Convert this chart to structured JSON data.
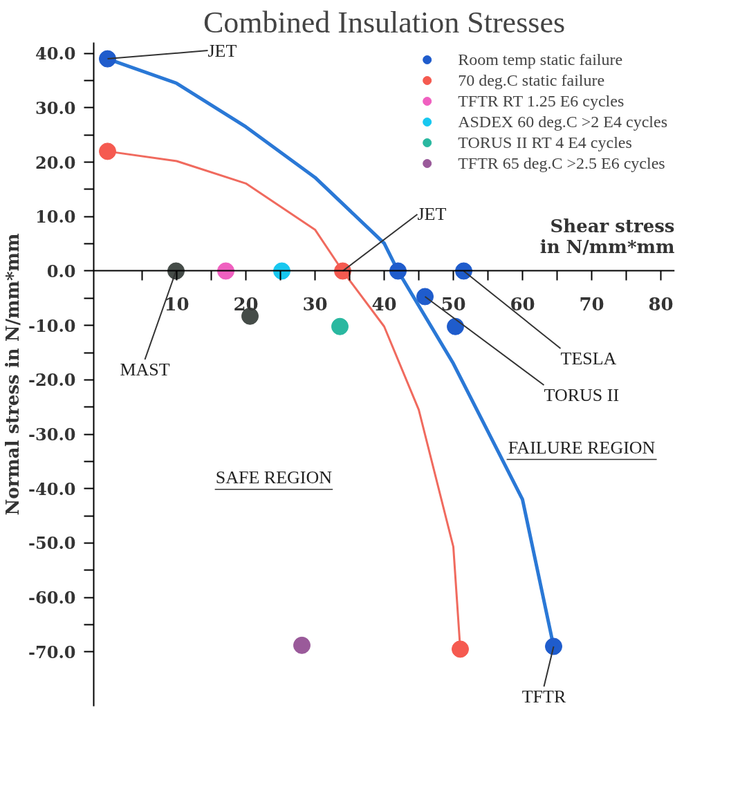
{
  "chart_data": {
    "type": "scatter",
    "title": "Combined Insulation Stresses",
    "xlabel": "Shear stress\nin N/mm*mm",
    "ylabel": "Normal stress in N/mm*mm",
    "xlim": [
      -2,
      82
    ],
    "ylim": [
      -80,
      42
    ],
    "xticks": [
      {
        "value": 5,
        "label": null
      },
      10,
      {
        "value": 15,
        "label": null
      },
      20,
      {
        "value": 25,
        "label": null
      },
      30,
      {
        "value": 35,
        "label": null
      },
      40,
      {
        "value": 45,
        "label": null
      },
      50,
      {
        "value": 55,
        "label": null
      },
      60,
      {
        "value": 65,
        "label": null
      },
      70,
      {
        "value": 75,
        "label": null
      },
      80
    ],
    "yticks": [
      {
        "value": 40,
        "label": "40.0"
      },
      {
        "value": 35,
        "label": null
      },
      {
        "value": 30,
        "label": "30.0"
      },
      {
        "value": 25,
        "label": null
      },
      {
        "value": 20,
        "label": "20.0"
      },
      {
        "value": 15,
        "label": null
      },
      {
        "value": 10,
        "label": "10.0"
      },
      {
        "value": 5,
        "label": null
      },
      {
        "value": 0,
        "label": "0.0"
      },
      {
        "value": -5,
        "label": null
      },
      {
        "value": -10,
        "label": "-10.0"
      },
      {
        "value": -15,
        "label": null
      },
      {
        "value": -20,
        "label": "-20.0"
      },
      {
        "value": -25,
        "label": null
      },
      {
        "value": -30,
        "label": "-30.0"
      },
      {
        "value": -35,
        "label": null
      },
      {
        "value": -40,
        "label": "-40.0"
      },
      {
        "value": -45,
        "label": null
      },
      {
        "value": -50,
        "label": "-50.0"
      },
      {
        "value": -55,
        "label": null
      },
      {
        "value": -60,
        "label": "-60.0"
      },
      {
        "value": -65,
        "label": null
      },
      {
        "value": -70,
        "label": "-70.0"
      }
    ],
    "grid": false,
    "legend": "top right",
    "marker": "circle",
    "line_style": "solid",
    "series": [
      {
        "type": "line",
        "marker": "none",
        "color": "#2a78d6",
        "x": [
          0,
          10,
          20,
          30,
          40,
          42,
          50,
          60,
          64.5
        ],
        "values": [
          39,
          34.5,
          26.5,
          17.2,
          5.1,
          0,
          -17,
          -42,
          -69
        ]
      },
      {
        "type": "line",
        "marker": "none",
        "color": "#f06a5e",
        "x": [
          0,
          10,
          20,
          30,
          34,
          40,
          45,
          50,
          51
        ],
        "values": [
          22,
          20.2,
          16.1,
          7.6,
          0,
          -10.2,
          -25.5,
          -50.7,
          -69.5
        ]
      },
      {
        "name": "Room temp static failure",
        "color": "#1f5ccc",
        "x": [
          0,
          42,
          45.9,
          50.3,
          51.5,
          64.5
        ],
        "values": [
          39,
          0,
          -4.7,
          -10.2,
          0,
          -69
        ]
      },
      {
        "name": "70 deg.C static failure",
        "color": "#f55a50",
        "x": [
          0,
          34,
          51
        ],
        "values": [
          22,
          0,
          -69.5
        ]
      },
      {
        "name": "TFTR RT 1.25 E6 cycles",
        "color": "#f060c0",
        "x": [
          17.1
        ],
        "values": [
          0
        ]
      },
      {
        "name": "ASDEX 60 deg.C >2 E4 cycles",
        "color": "#18c8f0",
        "x": [
          25.2
        ],
        "values": [
          0
        ]
      },
      {
        "name": "TORUS II RT 4 E4 cycles",
        "color": "#2ab8a0",
        "x": [
          33.6
        ],
        "values": [
          -10.2
        ]
      },
      {
        "name": "TFTR 65 deg.C >2.5 E6 cycles",
        "color": "#9a5a9a",
        "x": [
          28.1
        ],
        "values": [
          -68.8
        ]
      },
      {
        "color": "#454c48",
        "x": [
          9.9,
          20.6
        ],
        "values": [
          0,
          -8.3
        ]
      }
    ],
    "annotations": [
      {
        "text": "JET",
        "x": 0,
        "y": 39
      },
      {
        "text": "JET",
        "x": 34,
        "y": 0
      },
      {
        "text": "MAST",
        "x": 9.9,
        "y": 0
      },
      {
        "text": "TESLA",
        "x": 51.5,
        "y": 0
      },
      {
        "text": "TORUS II",
        "x": 45.9,
        "y": -4.7
      },
      {
        "text": "TFTR",
        "x": 64.5,
        "y": -69
      },
      "SAFE REGION",
      "FAILURE REGION"
    ]
  }
}
